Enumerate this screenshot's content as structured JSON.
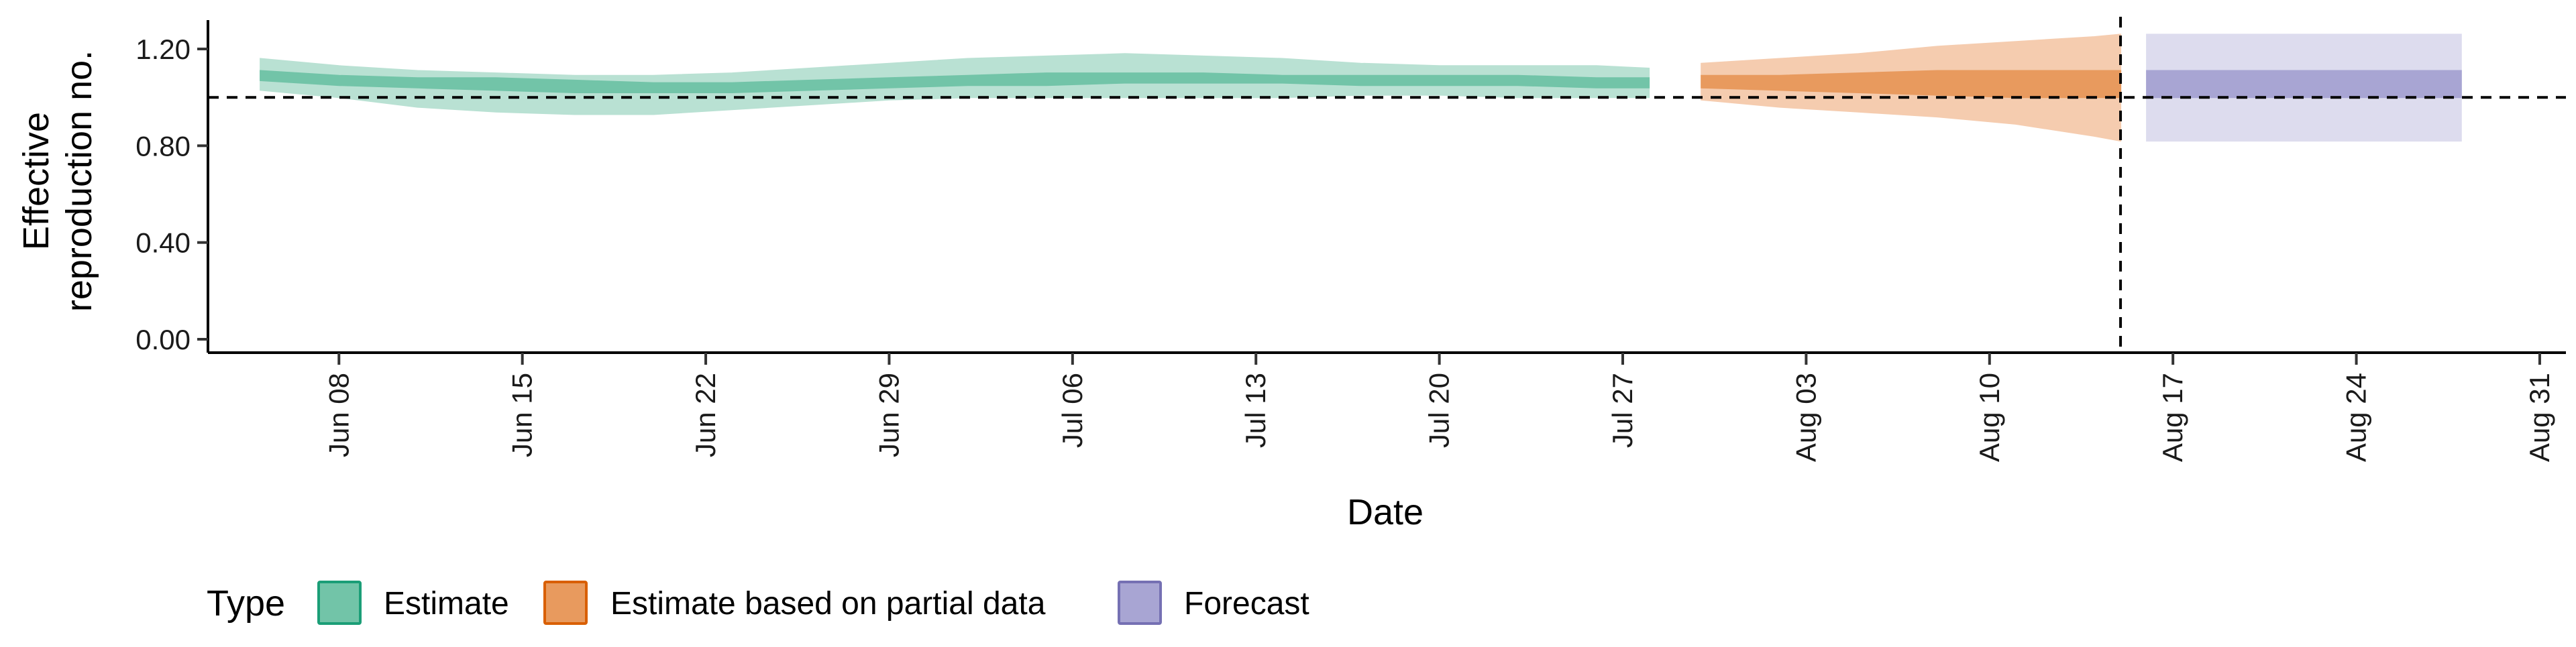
{
  "chart_data": {
    "type": "area",
    "title": "",
    "xlabel": "Date",
    "ylabel": [
      "Effective",
      "reproduction no."
    ],
    "ylim": [
      0,
      1.25
    ],
    "xlim": [
      "2020-06-03",
      "2020-09-01"
    ],
    "x_ticks": [
      {
        "date": "2020-06-08",
        "label": "Jun 08"
      },
      {
        "date": "2020-06-15",
        "label": "Jun 15"
      },
      {
        "date": "2020-06-22",
        "label": "Jun 22"
      },
      {
        "date": "2020-06-29",
        "label": "Jun 29"
      },
      {
        "date": "2020-07-06",
        "label": "Jul 06"
      },
      {
        "date": "2020-07-13",
        "label": "Jul 13"
      },
      {
        "date": "2020-07-20",
        "label": "Jul 20"
      },
      {
        "date": "2020-07-27",
        "label": "Jul 27"
      },
      {
        "date": "2020-08-03",
        "label": "Aug 03"
      },
      {
        "date": "2020-08-10",
        "label": "Aug 10"
      },
      {
        "date": "2020-08-17",
        "label": "Aug 17"
      },
      {
        "date": "2020-08-24",
        "label": "Aug 24"
      },
      {
        "date": "2020-08-31",
        "label": "Aug 31"
      }
    ],
    "y_ticks": [
      {
        "value": 0.0,
        "label": "0.00"
      },
      {
        "value": 0.4,
        "label": "0.40"
      },
      {
        "value": 0.8,
        "label": "0.80"
      },
      {
        "value": 1.2,
        "label": "1.20"
      }
    ],
    "reference_hline": 1.0,
    "reference_vline": "2020-08-15",
    "grid": false,
    "legend": {
      "title": "Type",
      "position": "bottom-left",
      "entries": [
        {
          "label": "Estimate",
          "fill": "#72c4a8",
          "border": "#1b9e77"
        },
        {
          "label": "Estimate based on partial data",
          "fill": "#e89a5e",
          "border": "#d95f02"
        },
        {
          "label": "Forecast",
          "fill": "#a8a5d3",
          "border": "#7570b3"
        }
      ]
    },
    "series": [
      {
        "name": "Estimate",
        "outer_color": "#b9e1d3",
        "inner_color": "#72c4a8",
        "x": [
          "2020-06-05",
          "2020-06-08",
          "2020-06-11",
          "2020-06-14",
          "2020-06-17",
          "2020-06-20",
          "2020-06-23",
          "2020-06-26",
          "2020-06-29",
          "2020-07-02",
          "2020-07-05",
          "2020-07-08",
          "2020-07-11",
          "2020-07-14",
          "2020-07-17",
          "2020-07-20",
          "2020-07-23",
          "2020-07-26",
          "2020-07-28"
        ],
        "lower90": [
          1.03,
          1.0,
          0.96,
          0.94,
          0.93,
          0.93,
          0.95,
          0.97,
          0.99,
          1.0,
          1.0,
          1.0,
          1.0,
          1.0,
          1.01,
          1.01,
          1.0,
          1.0,
          1.0
        ],
        "upper90": [
          1.16,
          1.13,
          1.11,
          1.1,
          1.09,
          1.09,
          1.1,
          1.12,
          1.14,
          1.16,
          1.17,
          1.18,
          1.17,
          1.16,
          1.14,
          1.13,
          1.13,
          1.13,
          1.12
        ],
        "lower50": [
          1.07,
          1.05,
          1.04,
          1.03,
          1.02,
          1.02,
          1.02,
          1.03,
          1.04,
          1.05,
          1.05,
          1.06,
          1.06,
          1.06,
          1.05,
          1.05,
          1.05,
          1.04,
          1.04
        ],
        "upper50": [
          1.11,
          1.09,
          1.08,
          1.08,
          1.07,
          1.06,
          1.06,
          1.07,
          1.08,
          1.09,
          1.1,
          1.1,
          1.1,
          1.09,
          1.09,
          1.09,
          1.09,
          1.08,
          1.08
        ]
      },
      {
        "name": "Estimate based on partial data",
        "outer_color": "#f5ccaf",
        "inner_color": "#e89a5e",
        "x": [
          "2020-07-30",
          "2020-08-02",
          "2020-08-05",
          "2020-08-08",
          "2020-08-11",
          "2020-08-14",
          "2020-08-15"
        ],
        "lower90": [
          0.99,
          0.96,
          0.94,
          0.92,
          0.89,
          0.84,
          0.82
        ],
        "upper90": [
          1.14,
          1.16,
          1.18,
          1.21,
          1.23,
          1.25,
          1.26
        ],
        "lower50": [
          1.04,
          1.03,
          1.02,
          1.01,
          1.0,
          1.0,
          1.0
        ],
        "upper50": [
          1.09,
          1.09,
          1.1,
          1.11,
          1.11,
          1.11,
          1.11
        ]
      },
      {
        "name": "Forecast",
        "outer_color": "#dddcee",
        "inner_color": "#a8a5d3",
        "x": [
          "2020-08-16",
          "2020-08-28"
        ],
        "lower90": [
          0.82,
          0.82
        ],
        "upper90": [
          1.26,
          1.26
        ],
        "lower50": [
          1.0,
          1.0
        ],
        "upper50": [
          1.11,
          1.11
        ]
      }
    ]
  }
}
